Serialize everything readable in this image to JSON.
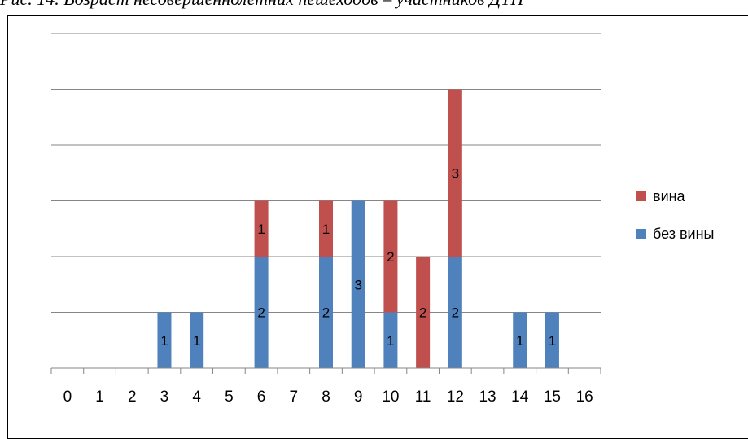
{
  "caption": "Рис. 14. Возраст несовершеннолетних пешеходов – участников ДТП",
  "chart_data": {
    "type": "bar",
    "stacked": true,
    "categories": [
      "0",
      "1",
      "2",
      "3",
      "4",
      "5",
      "6",
      "7",
      "8",
      "9",
      "10",
      "11",
      "12",
      "13",
      "14",
      "15",
      "16"
    ],
    "series": [
      {
        "name": "без вины",
        "color": "#4f81bd",
        "values": [
          0,
          0,
          0,
          1,
          1,
          0,
          2,
          0,
          2,
          3,
          1,
          0,
          2,
          0,
          1,
          1,
          0
        ]
      },
      {
        "name": "вина",
        "color": "#c0504d",
        "values": [
          0,
          0,
          0,
          0,
          0,
          0,
          1,
          0,
          1,
          0,
          2,
          2,
          3,
          0,
          0,
          0,
          0
        ]
      }
    ],
    "ylim": [
      0,
      6
    ],
    "grid": true,
    "y_tick_labels_shown": false,
    "legend_position": "right",
    "title": "",
    "xlabel": "",
    "ylabel": ""
  }
}
